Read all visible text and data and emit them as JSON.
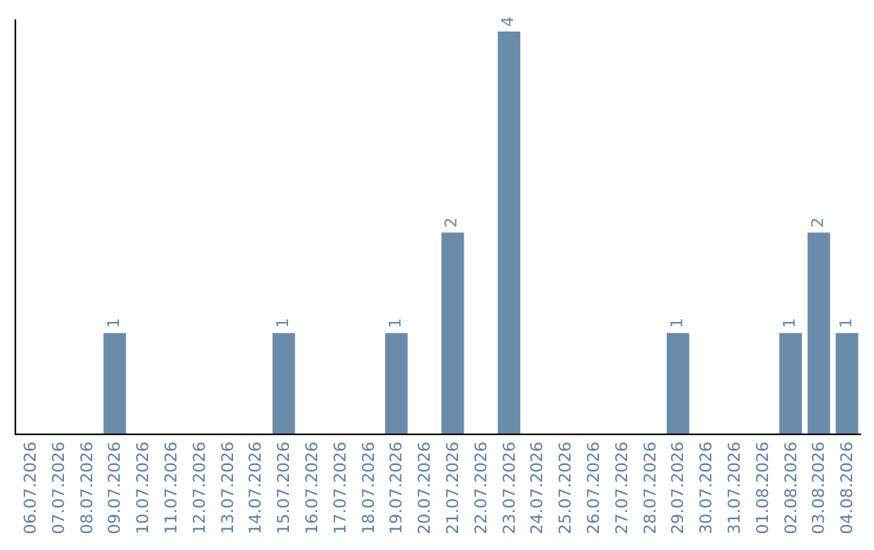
{
  "chart_data": {
    "type": "bar",
    "categories": [
      "06.07.2026",
      "07.07.2026",
      "08.07.2026",
      "09.07.2026",
      "10.07.2026",
      "11.07.2026",
      "12.07.2026",
      "13.07.2026",
      "14.07.2026",
      "15.07.2026",
      "16.07.2026",
      "17.07.2026",
      "18.07.2026",
      "19.07.2026",
      "20.07.2026",
      "21.07.2026",
      "22.07.2026",
      "23.07.2026",
      "24.07.2026",
      "25.07.2026",
      "26.07.2026",
      "27.07.2026",
      "28.07.2026",
      "29.07.2026",
      "30.07.2026",
      "31.07.2026",
      "01.08.2026",
      "02.08.2026",
      "03.08.2026",
      "04.08.2026"
    ],
    "values": [
      0,
      0,
      0,
      1,
      0,
      0,
      0,
      0,
      0,
      1,
      0,
      0,
      0,
      1,
      0,
      2,
      0,
      4,
      0,
      0,
      0,
      0,
      0,
      1,
      0,
      0,
      0,
      1,
      2,
      1
    ],
    "value_labels": [
      null,
      null,
      null,
      "1",
      null,
      null,
      null,
      null,
      null,
      "1",
      null,
      null,
      null,
      "1",
      null,
      "2",
      null,
      "4",
      null,
      null,
      null,
      null,
      null,
      "1",
      null,
      null,
      null,
      "1",
      "2",
      "1"
    ],
    "color": "#6b8bab",
    "grid": false,
    "legend": false
  }
}
